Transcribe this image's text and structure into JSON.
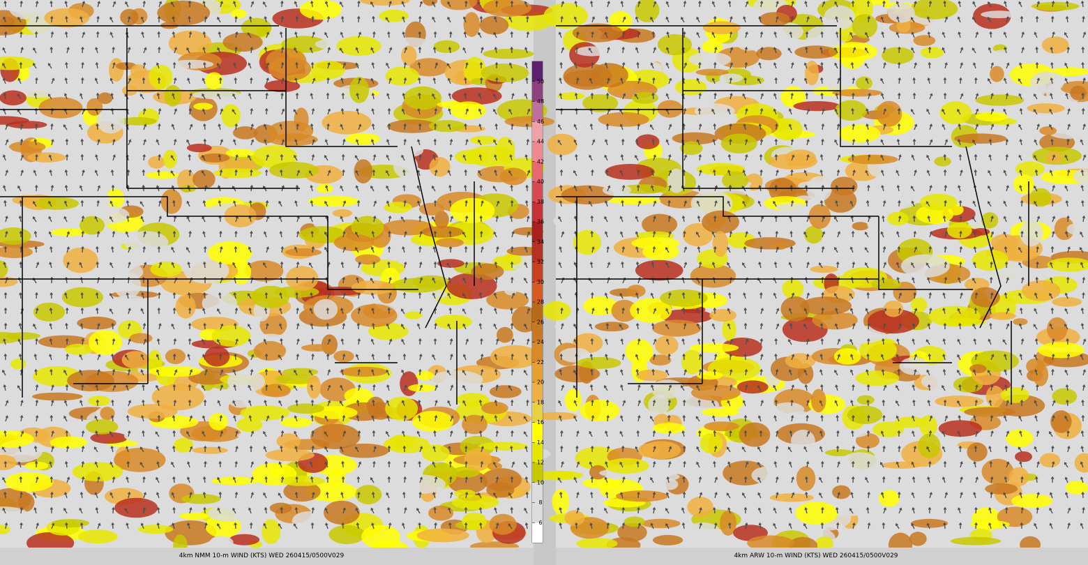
{
  "panels": [
    {
      "caption": "4km NMM 10-m WIND (KTS) WED 260415/0500V029"
    },
    {
      "caption": "4km ARW 10-m WIND (KTS) WED 260415/0500V029"
    }
  ],
  "colorbar": {
    "ticks": [
      6,
      8,
      10,
      12,
      14,
      16,
      18,
      20,
      22,
      24,
      26,
      28,
      30,
      32,
      34,
      36,
      38,
      40,
      42,
      44,
      46,
      48,
      50
    ],
    "colors": [
      "#ffffff",
      "#dcdcdc",
      "#dcdcdc",
      "#c8c800",
      "#e6e600",
      "#ffff00",
      "#e8d040",
      "#f0b040",
      "#e8a030",
      "#d88a28",
      "#c87820",
      "#b86a18",
      "#d85a20",
      "#c84020",
      "#b83020",
      "#a82020",
      "#c83038",
      "#d84850",
      "#e86870",
      "#f08890",
      "#f0a0a8",
      "#c070a0",
      "#904080",
      "#602070"
    ]
  }
}
